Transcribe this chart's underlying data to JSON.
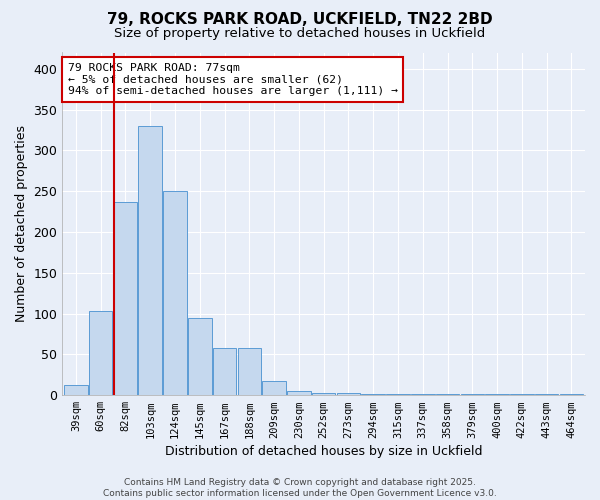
{
  "title1": "79, ROCKS PARK ROAD, UCKFIELD, TN22 2BD",
  "title2": "Size of property relative to detached houses in Uckfield",
  "xlabel": "Distribution of detached houses by size in Uckfield",
  "ylabel": "Number of detached properties",
  "bar_labels": [
    "39sqm",
    "60sqm",
    "82sqm",
    "103sqm",
    "124sqm",
    "145sqm",
    "167sqm",
    "188sqm",
    "209sqm",
    "230sqm",
    "252sqm",
    "273sqm",
    "294sqm",
    "315sqm",
    "337sqm",
    "358sqm",
    "379sqm",
    "400sqm",
    "422sqm",
    "443sqm",
    "464sqm"
  ],
  "bar_values": [
    13,
    103,
    237,
    330,
    250,
    95,
    58,
    58,
    17,
    5,
    3,
    3,
    2,
    2,
    2,
    2,
    1,
    1,
    1,
    1,
    2
  ],
  "bar_color": "#c5d8ee",
  "bar_edge_color": "#5b9bd5",
  "red_line_index": 2,
  "highlight_color": "#cc0000",
  "annotation_title": "79 ROCKS PARK ROAD: 77sqm",
  "annotation_line1": "← 5% of detached houses are smaller (62)",
  "annotation_line2": "94% of semi-detached houses are larger (1,111) →",
  "annotation_box_color": "#cc0000",
  "background_color": "#e8eef8",
  "grid_color": "#ffffff",
  "yticks": [
    0,
    50,
    100,
    150,
    200,
    250,
    300,
    350,
    400
  ],
  "ylim": [
    0,
    420
  ],
  "footer1": "Contains HM Land Registry data © Crown copyright and database right 2025.",
  "footer2": "Contains public sector information licensed under the Open Government Licence v3.0."
}
